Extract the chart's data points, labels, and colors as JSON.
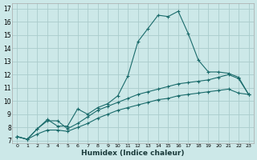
{
  "xlabel": "Humidex (Indice chaleur)",
  "bg_color": "#cce8e8",
  "grid_color": "#aacccc",
  "line_color": "#1a6b6b",
  "xlim": [
    -0.5,
    23.5
  ],
  "ylim": [
    6.8,
    17.4
  ],
  "xticks": [
    0,
    1,
    2,
    3,
    4,
    5,
    6,
    7,
    8,
    9,
    10,
    11,
    12,
    13,
    14,
    15,
    16,
    17,
    18,
    19,
    20,
    21,
    22,
    23
  ],
  "yticks": [
    7,
    8,
    9,
    10,
    11,
    12,
    13,
    14,
    15,
    16,
    17
  ],
  "series1_x": [
    0,
    1,
    2,
    3,
    4,
    5,
    6,
    7,
    8,
    9,
    10,
    11,
    12,
    13,
    14,
    15,
    16,
    17,
    18,
    19,
    20,
    21,
    22,
    23
  ],
  "series1_y": [
    7.3,
    7.1,
    7.9,
    8.6,
    8.1,
    8.1,
    9.4,
    9.0,
    9.5,
    9.8,
    10.4,
    11.9,
    14.5,
    15.5,
    16.5,
    16.4,
    16.8,
    15.1,
    13.1,
    12.2,
    12.2,
    12.1,
    11.8,
    10.5
  ],
  "series2_x": [
    0,
    1,
    2,
    3,
    4,
    5,
    6,
    7,
    8,
    9,
    10,
    11,
    12,
    13,
    14,
    15,
    16,
    17,
    18,
    19,
    20,
    21,
    22,
    23
  ],
  "series2_y": [
    7.3,
    7.1,
    7.9,
    8.5,
    8.5,
    7.9,
    8.3,
    8.8,
    9.3,
    9.6,
    9.9,
    10.2,
    10.5,
    10.7,
    10.9,
    11.1,
    11.3,
    11.4,
    11.5,
    11.6,
    11.8,
    12.0,
    11.7,
    10.5
  ],
  "series3_x": [
    0,
    1,
    2,
    3,
    4,
    5,
    6,
    7,
    8,
    9,
    10,
    11,
    12,
    13,
    14,
    15,
    16,
    17,
    18,
    19,
    20,
    21,
    22,
    23
  ],
  "series3_y": [
    7.3,
    7.1,
    7.5,
    7.8,
    7.8,
    7.7,
    8.0,
    8.3,
    8.7,
    9.0,
    9.3,
    9.5,
    9.7,
    9.9,
    10.1,
    10.2,
    10.4,
    10.5,
    10.6,
    10.7,
    10.8,
    10.9,
    10.6,
    10.5
  ]
}
